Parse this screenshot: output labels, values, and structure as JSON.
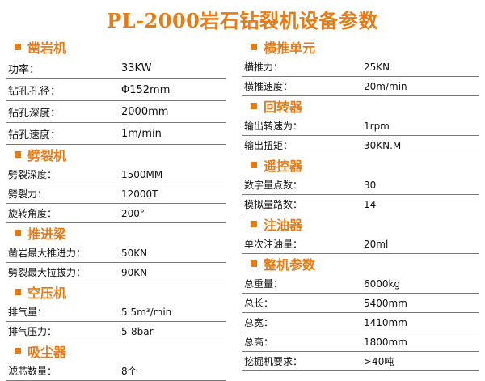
{
  "title": "PL-2000岩石钻裂机设备参数",
  "left": [
    {
      "title": "凿岩机",
      "rows": [
        {
          "label": "功率：",
          "value": "33KW"
        },
        {
          "label": "钻孔孔径：",
          "value": "Φ152mm"
        },
        {
          "label": "钻孔深度：",
          "value": "2000mm"
        },
        {
          "label": "钻孔速度：",
          "value": "1m/min"
        }
      ]
    },
    {
      "title": "劈裂机",
      "rows": [
        {
          "label": "劈裂深度：",
          "value": "1500MM"
        },
        {
          "label": "劈裂力：",
          "value": "12000T"
        },
        {
          "label": "旋转角度：",
          "value": "200°"
        }
      ]
    },
    {
      "title": "推进梁",
      "rows": [
        {
          "label": "凿岩最大推进力：",
          "value": "50KN"
        },
        {
          "label": "劈裂最大拉拔力：",
          "value": "90KN"
        }
      ]
    },
    {
      "title": "空压机",
      "rows": [
        {
          "label": "排气量：",
          "value": "5.5m³/min"
        },
        {
          "label": "排气压力：",
          "value": "5-8bar"
        }
      ]
    },
    {
      "title": "吸尘器",
      "rows": [
        {
          "label": "滤芯数量：",
          "value": "8个"
        }
      ]
    }
  ],
  "right": [
    {
      "title": "横推单元",
      "rows": [
        {
          "label": "横推力：",
          "value": "25KN"
        },
        {
          "label": "横推速度：",
          "value": "20m/min"
        }
      ]
    },
    {
      "title": "回转器",
      "rows": [
        {
          "label": "输出转速为：",
          "value": "1rpm"
        },
        {
          "label": "输出扭矩：",
          "value": "30KN.M"
        }
      ]
    },
    {
      "title": "遥控器",
      "rows": [
        {
          "label": "数字量点数：",
          "value": "30"
        },
        {
          "label": "模拟量路数：",
          "value": "14"
        }
      ]
    },
    {
      "title": "注油器",
      "rows": [
        {
          "label": "单次注油量：",
          "value": "20ml"
        }
      ]
    },
    {
      "title": "整机参数",
      "rows": [
        {
          "label": "总重量：",
          "value": "6000kg"
        },
        {
          "label": "总长：",
          "value": "5400mm"
        },
        {
          "label": "总宽：",
          "value": "1410mm"
        },
        {
          "label": "总高：",
          "value": "1800mm"
        },
        {
          "label": "挖掘机要求：",
          "value": ">40吨"
        }
      ]
    }
  ],
  "colors": {
    "accent": "#e87a14",
    "rule": "#7a7a7a"
  },
  "icons": {
    "section_marker": "orange-square-bullet"
  }
}
